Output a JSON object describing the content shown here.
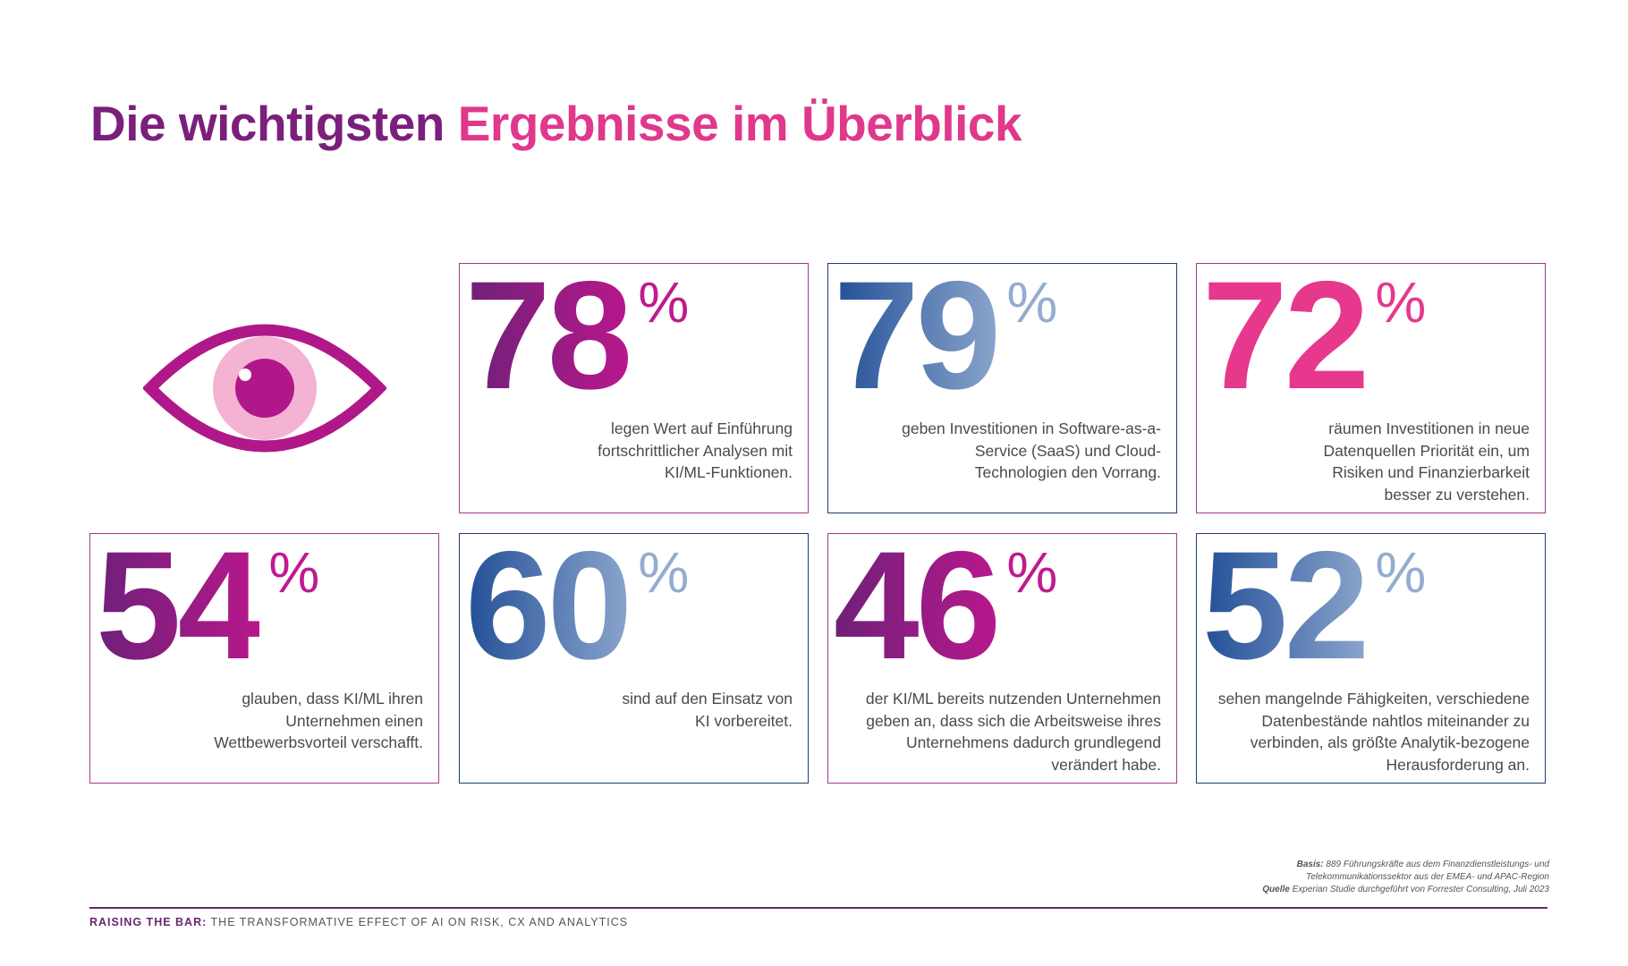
{
  "title": {
    "part1": "Die wichtigsten",
    "part2": "Ergebnisse im Überblick"
  },
  "icon": "eye-icon",
  "colors": {
    "purple": "#7a1f7c",
    "magenta": "#b8188c",
    "pink": "#e6388c",
    "blue": "#234f97",
    "light_blue": "#94acd0"
  },
  "stats": [
    {
      "value": "78",
      "unit": "%",
      "text": "legen Wert auf Einführung fortschrittlicher Analysen mit KI/ML-Funktionen."
    },
    {
      "value": "79",
      "unit": "%",
      "text": "geben Investitionen in Software-as-a-Service (SaaS) und Cloud-Technologien den Vorrang."
    },
    {
      "value": "72",
      "unit": "%",
      "text": "räumen Investitionen in neue Datenquellen Priorität ein, um Risiken und Finanzierbarkeit besser zu verstehen."
    },
    {
      "value": "54",
      "unit": "%",
      "text": "glauben, dass KI/ML ihren Unternehmen einen Wettbewerbsvorteil verschafft."
    },
    {
      "value": "60",
      "unit": "%",
      "text": "sind auf den Einsatz von KI vorbereitet."
    },
    {
      "value": "46",
      "unit": "%",
      "text": "der KI/ML bereits nutzenden Unternehmen geben an, dass sich die Arbeitsweise ihres Unternehmens dadurch grundlegend verändert habe."
    },
    {
      "value": "52",
      "unit": "%",
      "text": "sehen mangelnde Fähigkeiten, verschiedene Datenbestände nahtlos miteinander zu verbinden, als größte Analytik-bezogene Herausforderung an."
    }
  ],
  "footnote": {
    "basis_label": "Basis:",
    "basis_line1": "889 Führungskräfte aus dem Finanzdienstleistungs- und",
    "basis_line2": "Telekommunikationssektor aus der EMEA- und APAC-Region",
    "source_label": "Quelle",
    "source_text": "Experian Studie durchgeführt von Forrester Consulting, Juli 2023"
  },
  "footer": {
    "bold": "RAISING THE BAR:",
    "text": "THE TRANSFORMATIVE EFFECT OF AI ON RISK, CX AND ANALYTICS"
  }
}
